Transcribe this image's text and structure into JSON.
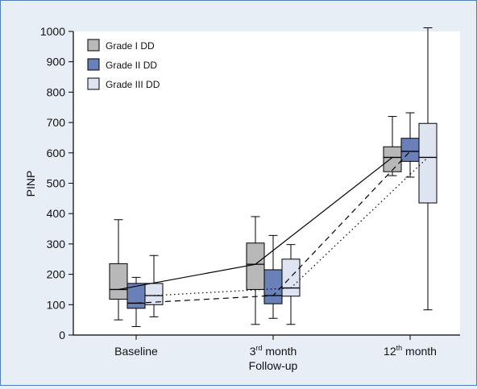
{
  "chart_data": {
    "type": "box",
    "ylabel": "PINP",
    "ylim": [
      0,
      1000
    ],
    "yticks": [
      0,
      100,
      200,
      300,
      400,
      500,
      600,
      700,
      800,
      900,
      1000
    ],
    "x_categories": [
      {
        "main": "Baseline",
        "sup": "",
        "rest": "",
        "line2": ""
      },
      {
        "main": "3",
        "sup": "rd",
        "rest": " month",
        "line2": "Follow-up"
      },
      {
        "main": "12",
        "sup": "th",
        "rest": " month",
        "line2": ""
      }
    ],
    "legend_position": "top-left",
    "grid": false,
    "series": [
      {
        "name": "Grade I DD",
        "color": "#b8b8b8",
        "median_line_style": "solid",
        "boxes": [
          {
            "min": 50,
            "q1": 118,
            "median": 150,
            "q3": 235,
            "max": 380
          },
          {
            "min": 35,
            "q1": 150,
            "median": 233,
            "q3": 303,
            "max": 390
          },
          {
            "min": 525,
            "q1": 538,
            "median": 585,
            "q3": 620,
            "max": 720
          }
        ]
      },
      {
        "name": "Grade II DD",
        "color": "#6a80b8",
        "median_line_style": "dashed",
        "boxes": [
          {
            "min": 28,
            "q1": 88,
            "median": 105,
            "q3": 170,
            "max": 190
          },
          {
            "min": 55,
            "q1": 103,
            "median": 130,
            "q3": 215,
            "max": 328
          },
          {
            "min": 520,
            "q1": 572,
            "median": 605,
            "q3": 648,
            "max": 732
          }
        ]
      },
      {
        "name": "Grade III DD",
        "color": "#dfe4f2",
        "median_line_style": "dotted",
        "boxes": [
          {
            "min": 60,
            "q1": 100,
            "median": 130,
            "q3": 170,
            "max": 262
          },
          {
            "min": 35,
            "q1": 128,
            "median": 155,
            "q3": 250,
            "max": 298
          },
          {
            "min": 83,
            "q1": 435,
            "median": 585,
            "q3": 697,
            "max": 1012
          }
        ]
      }
    ]
  }
}
